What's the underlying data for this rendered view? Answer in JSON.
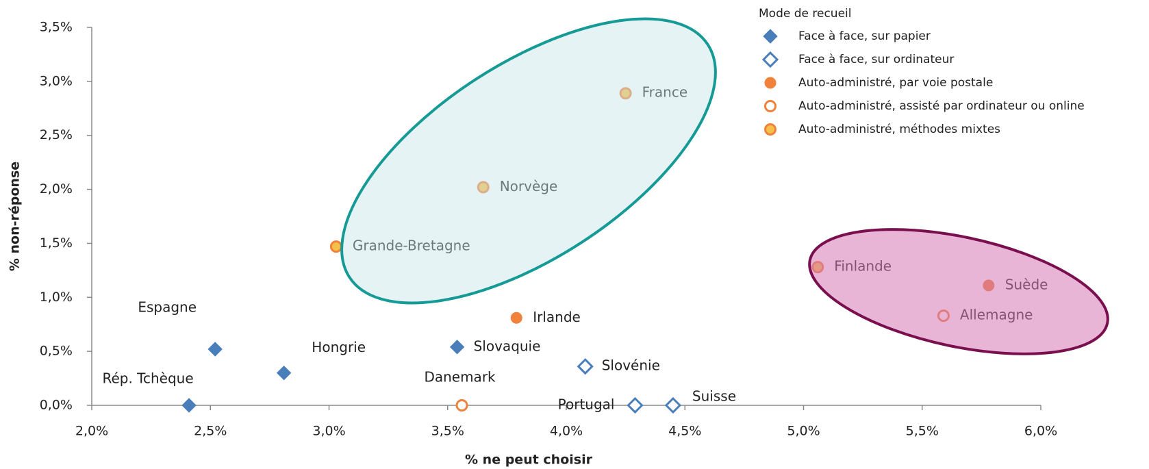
{
  "chart_data": {
    "type": "scatter",
    "x_label": "% ne peut choisir",
    "y_label": "% non-réponse",
    "legend_title": "Mode de recueil",
    "legend": "top-right",
    "xlim": [
      2,
      6
    ],
    "ylim": [
      0,
      3.5
    ],
    "xticks": [
      {
        "value": 2,
        "label": "2,0%"
      },
      {
        "value": 2.5,
        "label": "2,5%"
      },
      {
        "value": 3,
        "label": "3,0%"
      },
      {
        "value": 3.5,
        "label": "3,5%"
      },
      {
        "value": 4,
        "label": "4,0%"
      },
      {
        "value": 4.5,
        "label": "4,5%"
      },
      {
        "value": 5,
        "label": "5,0%"
      },
      {
        "value": 5.5,
        "label": "5,5%"
      },
      {
        "value": 6,
        "label": "6,0%"
      }
    ],
    "yticks": [
      {
        "value": 0,
        "label": "0,0%"
      },
      {
        "value": 0.5,
        "label": "0,5%"
      },
      {
        "value": 1,
        "label": "1,0%"
      },
      {
        "value": 1.5,
        "label": "1,5%"
      },
      {
        "value": 2,
        "label": "2,0%"
      },
      {
        "value": 2.5,
        "label": "2,5%"
      },
      {
        "value": 3,
        "label": "3,0%"
      },
      {
        "value": 3.5,
        "label": "3,5%"
      }
    ],
    "series": [
      {
        "name": "Face à face, sur papier",
        "color": "#4a7ebb",
        "marker": "diamond",
        "filled": true,
        "labels": [
          "Espagne",
          "Hongrie",
          "Rép. Tchèque",
          "Slovaquie"
        ],
        "x": [
          2.52,
          2.81,
          2.41,
          3.54
        ],
        "y": [
          0.52,
          0.3,
          0.0,
          0.54
        ]
      },
      {
        "name": "Face à face, sur ordinateur",
        "color": "#4a7ebb",
        "marker": "diamond",
        "filled": false,
        "labels": [
          "Slovénie",
          "Portugal",
          "Suisse"
        ],
        "x": [
          4.08,
          4.29,
          4.45
        ],
        "y": [
          0.36,
          0.0,
          0.0
        ]
      },
      {
        "name": "Auto-administré, par voie postale",
        "color": "#f0823c",
        "marker": "circle",
        "filled": true,
        "labels": [
          "Irlande",
          "Suède"
        ],
        "x": [
          3.79,
          5.78
        ],
        "y": [
          0.81,
          1.11
        ]
      },
      {
        "name": "Auto-administré, assisté par ordinateur ou online",
        "color": "#f0823c",
        "marker": "circle",
        "filled": false,
        "labels": [
          "Danemark",
          "Allemagne"
        ],
        "x": [
          3.56,
          5.59
        ],
        "y": [
          0.0,
          0.83
        ]
      },
      {
        "name": "Auto-administré, méthodes mixtes",
        "color": "#f0823c",
        "inner": "#f5c04a",
        "marker": "circle",
        "filled": true,
        "labels": [
          "France",
          "Norvège",
          "Grande-Bretagne",
          "Finlande"
        ],
        "x": [
          4.25,
          3.65,
          3.03,
          5.06
        ],
        "y": [
          2.89,
          2.02,
          1.47,
          1.28
        ]
      }
    ]
  }
}
